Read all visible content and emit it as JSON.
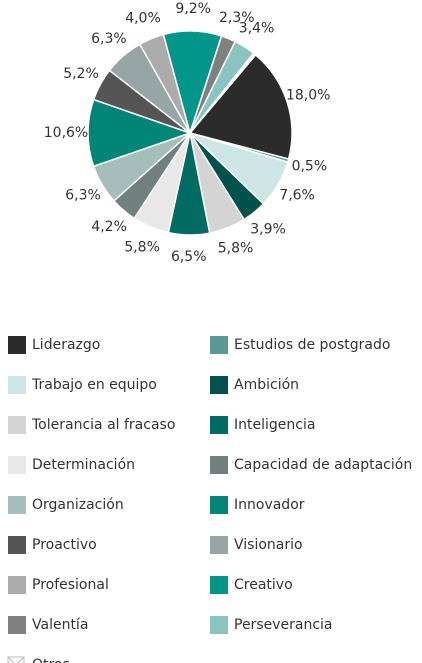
{
  "chart_data": {
    "type": "pie",
    "categories": [
      "Liderazgo",
      "Estudios de postgrado",
      "Trabajo en equipo",
      "Ambición",
      "Tolerancia al fracaso",
      "Inteligencia",
      "Determinación",
      "Capacidad de adaptación",
      "Organización",
      "Innovador",
      "Proactivo",
      "Visionario",
      "Profesional",
      "Creativo",
      "Valentía",
      "Perseverancia",
      "Otros"
    ],
    "values": [
      18.0,
      0.5,
      7.6,
      3.9,
      5.8,
      6.5,
      5.8,
      4.2,
      6.3,
      10.6,
      5.2,
      6.3,
      4.0,
      9.2,
      2.3,
      3.4,
      0.4
    ],
    "value_labels": [
      "18,0%",
      "0,5%",
      "7,6%",
      "3,9%",
      "5,8%",
      "6,5%",
      "5,8%",
      "4,2%",
      "6,3%",
      "10,6%",
      "5,2%",
      "6,3%",
      "4,0%",
      "9,2%",
      "2,3%",
      "3,4%",
      null
    ],
    "colors": [
      "#2b2b2b",
      "#5a9a96",
      "#cde6e5",
      "#00524d",
      "#d4d4d4",
      "#006b63",
      "#e8e8e8",
      "#6f807e",
      "#a5bdbb",
      "#008577",
      "#555555",
      "#96a6a7",
      "#ababab",
      "#00968a",
      "#808080",
      "#8ac4c0",
      "#ffffff"
    ],
    "legend": "bottom"
  }
}
